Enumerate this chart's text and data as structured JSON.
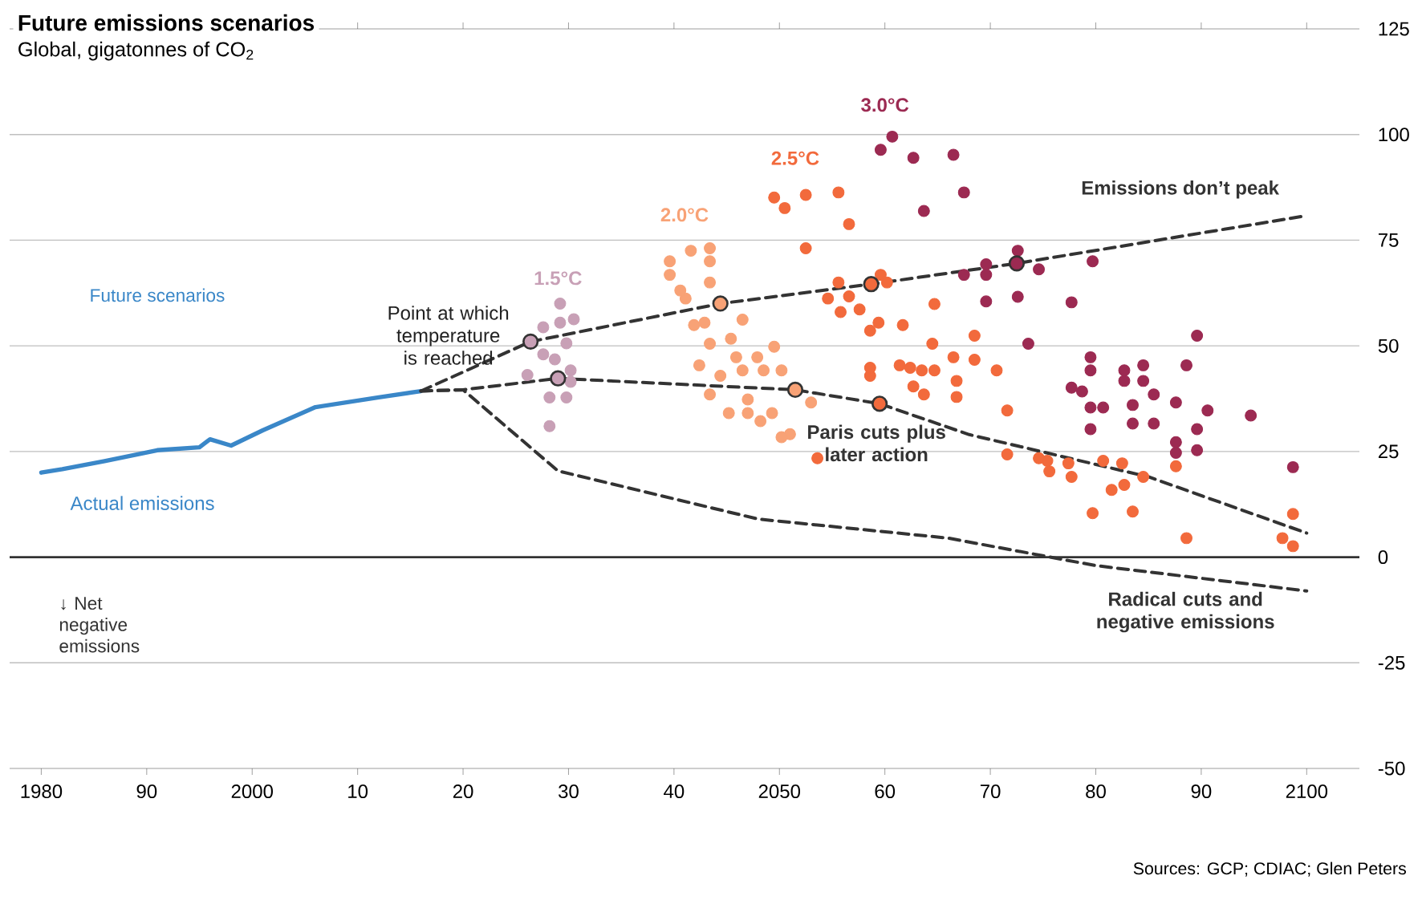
{
  "chart_data": {
    "type": "line",
    "title": "Future emissions scenarios",
    "subtitle": "Global, gigatonnes of CO$_{2}$",
    "xlim": [
      1977,
      2105
    ],
    "ylim": [
      -50,
      125
    ],
    "xticks": [
      1980,
      {
        "value": 1990,
        "label": "90"
      },
      2000,
      {
        "value": 2010,
        "label": "10"
      },
      {
        "value": 2020,
        "label": "20"
      },
      {
        "value": 2030,
        "label": "30"
      },
      {
        "value": 2040,
        "label": "40"
      },
      2050,
      {
        "value": 2060,
        "label": "60"
      },
      {
        "value": 2070,
        "label": "70"
      },
      {
        "value": 2080,
        "label": "80"
      },
      {
        "value": 2090,
        "label": "90"
      },
      2100
    ],
    "yticks": [
      -50,
      -25,
      0,
      25,
      50,
      75,
      100,
      125
    ],
    "grid": "y",
    "ref_lines": [
      {
        "axis": "y",
        "value": 0,
        "color": "#333333"
      }
    ],
    "annotations": [
      "Future scenarios",
      "↓ Net negative emissions",
      "Sources: GCP; CDIAC; Glen Peters"
    ],
    "series": [
      {
        "name": "Actual emissions",
        "color": "#3a87c8",
        "line_style": "solid",
        "marker": "none",
        "x": [
          1980,
          1982,
          1986,
          1991,
          1995,
          1996,
          1998,
          2001,
          2006,
          2012,
          2016
        ],
        "values": [
          20,
          20.8,
          22.7,
          25.3,
          26,
          27.9,
          26.4,
          30,
          35.5,
          37.8,
          39.3
        ]
      },
      {
        "name": "Emissions don’t peak",
        "color": "#333333",
        "line_style": "dashed",
        "marker": "none",
        "x": [
          2016,
          2026.4,
          2044.4,
          2058.7,
          2072.5,
          2100
        ],
        "values": [
          39.3,
          51,
          60,
          64.6,
          69.5,
          80.8
        ]
      },
      {
        "name": "Paris cuts plus later action",
        "color": "#333333",
        "line_style": "dashed",
        "marker": "none",
        "x": [
          2016,
          2020,
          2029,
          2051.5,
          2059.5,
          2068,
          2085,
          2100
        ],
        "values": [
          39.3,
          39.6,
          42.3,
          39.6,
          36.3,
          29,
          19,
          5.7
        ]
      },
      {
        "name": "Radical cuts and negative emissions",
        "color": "#333333",
        "line_style": "dashed",
        "marker": "none",
        "x": [
          2016,
          2020,
          2026.7,
          2029,
          2048,
          2066,
          2080,
          2100
        ],
        "values": [
          39.3,
          39.6,
          25.3,
          20.4,
          9,
          4.5,
          -2,
          -8
        ]
      },
      {
        "name": "1.5°C",
        "type": "scatter",
        "color": "#c8a0b6",
        "marker": "circle",
        "x": [
          2028.2,
          2029.8,
          2028.2,
          2030.2,
          2028.7,
          2027.6,
          2029.8,
          2027.6,
          2029.2,
          2030.5,
          2029.2,
          2026.1,
          2030.2
        ],
        "values": [
          31,
          37.8,
          37.8,
          44.2,
          46.8,
          48,
          50.6,
          54.4,
          55.5,
          56.3,
          60,
          43.1,
          41.5
        ]
      },
      {
        "name": "2.0°C",
        "type": "scatter",
        "color": "#f8a276",
        "marker": "circle",
        "x": [
          2051,
          2050.2,
          2048.2,
          2049.3,
          2047,
          2045.2,
          2053,
          2047,
          2043.4,
          2050.2,
          2048.5,
          2046.5,
          2044.4,
          2045.9,
          2047.9,
          2042.4,
          2049.5,
          2045.4,
          2043.4,
          2042.9,
          2041.9,
          2046.5,
          2041.1,
          2040.6,
          2043.4,
          2043.4,
          2043.4,
          2041.6,
          2039.6,
          2039.6
        ],
        "values": [
          29.1,
          28.4,
          32.2,
          34.1,
          34.1,
          34.1,
          36.6,
          37.3,
          38.5,
          44.2,
          44.2,
          44.2,
          42.9,
          47.3,
          47.3,
          45.4,
          49.8,
          51.7,
          50.5,
          55.5,
          54.9,
          56.2,
          61.2,
          63.1,
          65,
          70,
          73.1,
          72.5,
          66.8,
          70
        ]
      },
      {
        "name": "2.5°C",
        "type": "scatter",
        "color": "#f26a3c",
        "marker": "circle",
        "x": [
          2066.8,
          2066.8,
          2063.7,
          2062.7,
          2064.7,
          2063.5,
          2062.4,
          2061.4,
          2058.6,
          2058.6,
          2066.5,
          2064.5,
          2061.7,
          2059.4,
          2058.6,
          2057.6,
          2055.8,
          2056.6,
          2054.6,
          2055.6,
          2060.2,
          2059.6,
          2064.7,
          2052.5,
          2056.6,
          2055.6,
          2052.5,
          2050.5,
          2049.5,
          2098.7,
          2097.7,
          2088.6,
          2098.7,
          2083.5,
          2079.7,
          2084.5,
          2082.7,
          2081.5,
          2082.5,
          2087.6,
          2080.7,
          2077.7,
          2077.4,
          2075.6,
          2075.4,
          2074.6,
          2071.6,
          2071.6,
          2070.6,
          2068.5,
          2068.5,
          2053.6
        ],
        "values": [
          37.9,
          41.7,
          38.5,
          40.4,
          44.2,
          44.2,
          44.8,
          45.4,
          42.9,
          44.8,
          47.3,
          50.5,
          54.9,
          55.5,
          53.6,
          58.6,
          58,
          61.7,
          61.2,
          65,
          65,
          66.8,
          59.9,
          73.1,
          78.8,
          86.3,
          85.7,
          82.6,
          85.1,
          2.6,
          4.5,
          4.5,
          10.2,
          10.8,
          10.4,
          19,
          17.1,
          15.9,
          22.2,
          21.5,
          22.8,
          19,
          22.2,
          20.3,
          22.8,
          23.4,
          24.3,
          34.7,
          44.2,
          46.7,
          52.4,
          23.4
        ]
      },
      {
        "name": "3.0°C",
        "type": "scatter",
        "color": "#9c2a52",
        "marker": "circle",
        "x": [
          2098.7,
          2089.6,
          2087.6,
          2087.6,
          2094.7,
          2090.6,
          2089.6,
          2087.6,
          2085.5,
          2083.5,
          2083.5,
          2085.5,
          2084.5,
          2082.7,
          2084.5,
          2082.7,
          2080.7,
          2079.5,
          2079.5,
          2078.7,
          2077.7,
          2079.5,
          2079.5,
          2088.6,
          2089.6,
          2073.6,
          2077.7,
          2072.6,
          2069.6,
          2074.6,
          2069.6,
          2067.5,
          2069.6,
          2072.6,
          2079.7,
          2067.5,
          2066.5,
          2063.7,
          2062.7,
          2060.7,
          2059.6
        ],
        "values": [
          21.3,
          25.3,
          24.7,
          27.2,
          33.5,
          34.7,
          30.3,
          36.6,
          31.6,
          31.6,
          36,
          38.5,
          41.7,
          41.7,
          45.4,
          44.2,
          35.4,
          35.4,
          30.3,
          39.2,
          40.1,
          44.2,
          47.3,
          45.4,
          52.4,
          50.5,
          60.3,
          61.6,
          60.5,
          68.1,
          66.8,
          66.8,
          69.3,
          72.5,
          70,
          86.3,
          95.2,
          81.9,
          94.5,
          99.5,
          96.4
        ]
      },
      {
        "name": "Point at which temperature is reached",
        "type": "scatter",
        "marker": "circle",
        "colors": [
          "#c8a0b6",
          "#f8a276",
          "#f26a3c",
          "#9c2a52",
          "#c8a0b6",
          "#f8a276",
          "#f26a3c"
        ],
        "x": [
          2026.4,
          2044.4,
          2058.7,
          2072.5,
          2029,
          2051.5,
          2059.5
        ],
        "values": [
          51,
          60,
          64.6,
          69.5,
          42.3,
          39.6,
          36.3
        ]
      }
    ]
  }
}
